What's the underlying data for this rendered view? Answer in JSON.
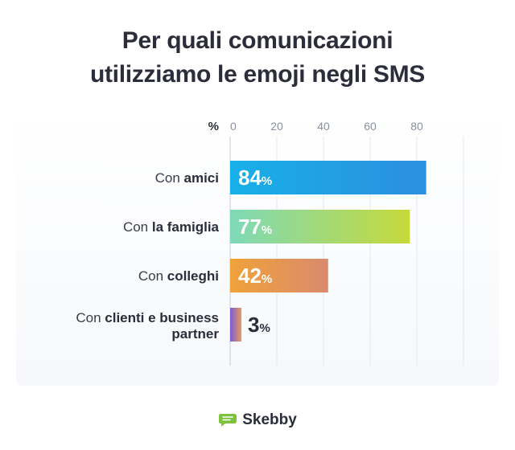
{
  "title": {
    "line1": "Per quali comunicazioni",
    "line2": "utilizziamo le emoji negli SMS"
  },
  "chart_data": {
    "type": "bar",
    "orientation": "horizontal",
    "title": "Per quali comunicazioni utilizziamo le emoji negli SMS",
    "axis_unit": "%",
    "xlim": [
      0,
      100
    ],
    "ticks": [
      0,
      20,
      40,
      60,
      80
    ],
    "grid": true,
    "categories": [
      {
        "parts": [
          {
            "t": "Con ",
            "b": false
          },
          {
            "t": "amici",
            "b": true
          }
        ]
      },
      {
        "parts": [
          {
            "t": "Con ",
            "b": false
          },
          {
            "t": "la famiglia",
            "b": true
          }
        ]
      },
      {
        "parts": [
          {
            "t": "Con ",
            "b": false
          },
          {
            "t": "colleghi",
            "b": true
          }
        ]
      },
      {
        "parts": [
          {
            "t": "Con ",
            "b": false
          },
          {
            "t": "clienti e business",
            "b": true
          }
        ],
        "line2": "partner"
      }
    ],
    "values": [
      84,
      77,
      42,
      3
    ],
    "value_suffix": "%",
    "gradients": [
      [
        "#17b0e8",
        "#2b8fe0"
      ],
      [
        "#7ed9b8",
        "#c6d93a"
      ],
      [
        "#f0a23a",
        "#d98a6e"
      ],
      [
        "#7b5cd6",
        "#e89a5a"
      ]
    ]
  },
  "brand": {
    "name": "Skebby",
    "color": "#7cc23e"
  }
}
